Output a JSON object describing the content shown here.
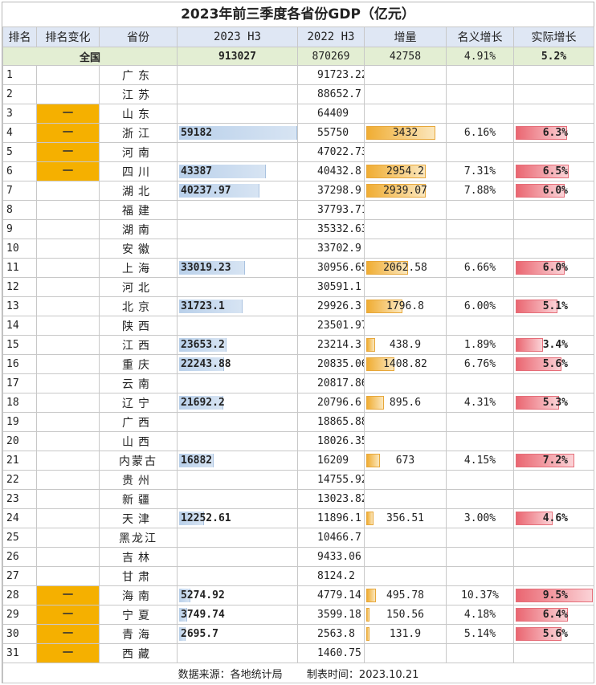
{
  "title": "2023年前三季度各省份GDP（亿元）",
  "headers": [
    "排名",
    "排名变化",
    "省份",
    "2023 H3",
    "2022 H3",
    "增量",
    "名义增长",
    "实际增长"
  ],
  "national": {
    "label": "全国",
    "h3_2023": "913027",
    "h3_2022": "870269",
    "increase": "42758",
    "nominal": "4.91%",
    "real": "5.2%"
  },
  "colors": {
    "rank_change": "#f5b000",
    "bar_2023": "#b9d0ea",
    "bar_increase": "#f0ad33",
    "bar_real": "#ea6671",
    "header_bg": "#dfe7f4",
    "national_bg": "#e3eed3"
  },
  "rows": [
    {
      "rank": "1",
      "change": "",
      "province": "广东",
      "h3_2023": "",
      "h3_2022": "91723.22",
      "increase": "",
      "nominal": "",
      "real": ""
    },
    {
      "rank": "2",
      "change": "",
      "province": "江苏",
      "h3_2023": "",
      "h3_2022": "88652.7",
      "increase": "",
      "nominal": "",
      "real": ""
    },
    {
      "rank": "3",
      "change": "一",
      "province": "山东",
      "h3_2023": "",
      "h3_2022": "64409",
      "increase": "",
      "nominal": "",
      "real": ""
    },
    {
      "rank": "4",
      "change": "一",
      "province": "浙江",
      "h3_2023": "59182",
      "h3_2022": "55750",
      "increase": "3432",
      "nominal": "6.16%",
      "real": "6.3%"
    },
    {
      "rank": "5",
      "change": "一",
      "province": "河南",
      "h3_2023": "",
      "h3_2022": "47022.73",
      "increase": "",
      "nominal": "",
      "real": ""
    },
    {
      "rank": "6",
      "change": "一",
      "province": "四川",
      "h3_2023": "43387",
      "h3_2022": "40432.8",
      "increase": "2954.2",
      "nominal": "7.31%",
      "real": "6.5%"
    },
    {
      "rank": "7",
      "change": "",
      "province": "湖北",
      "h3_2023": "40237.97",
      "h3_2022": "37298.9",
      "increase": "2939.07",
      "nominal": "7.88%",
      "real": "6.0%"
    },
    {
      "rank": "8",
      "change": "",
      "province": "福建",
      "h3_2023": "",
      "h3_2022": "37793.71",
      "increase": "",
      "nominal": "",
      "real": ""
    },
    {
      "rank": "9",
      "change": "",
      "province": "湖南",
      "h3_2023": "",
      "h3_2022": "35332.63",
      "increase": "",
      "nominal": "",
      "real": ""
    },
    {
      "rank": "10",
      "change": "",
      "province": "安徽",
      "h3_2023": "",
      "h3_2022": "33702.9",
      "increase": "",
      "nominal": "",
      "real": ""
    },
    {
      "rank": "11",
      "change": "",
      "province": "上海",
      "h3_2023": "33019.23",
      "h3_2022": "30956.65",
      "increase": "2062.58",
      "nominal": "6.66%",
      "real": "6.0%"
    },
    {
      "rank": "12",
      "change": "",
      "province": "河北",
      "h3_2023": "",
      "h3_2022": "30591.1",
      "increase": "",
      "nominal": "",
      "real": ""
    },
    {
      "rank": "13",
      "change": "",
      "province": "北京",
      "h3_2023": "31723.1",
      "h3_2022": "29926.3",
      "increase": "1796.8",
      "nominal": "6.00%",
      "real": "5.1%"
    },
    {
      "rank": "14",
      "change": "",
      "province": "陕西",
      "h3_2023": "",
      "h3_2022": "23501.97",
      "increase": "",
      "nominal": "",
      "real": ""
    },
    {
      "rank": "15",
      "change": "",
      "province": "江西",
      "h3_2023": "23653.2",
      "h3_2022": "23214.3",
      "increase": "438.9",
      "nominal": "1.89%",
      "real": "3.4%"
    },
    {
      "rank": "16",
      "change": "",
      "province": "重庆",
      "h3_2023": "22243.88",
      "h3_2022": "20835.06",
      "increase": "1408.82",
      "nominal": "6.76%",
      "real": "5.6%"
    },
    {
      "rank": "17",
      "change": "",
      "province": "云南",
      "h3_2023": "",
      "h3_2022": "20817.86",
      "increase": "",
      "nominal": "",
      "real": ""
    },
    {
      "rank": "18",
      "change": "",
      "province": "辽宁",
      "h3_2023": "21692.2",
      "h3_2022": "20796.6",
      "increase": "895.6",
      "nominal": "4.31%",
      "real": "5.3%"
    },
    {
      "rank": "19",
      "change": "",
      "province": "广西",
      "h3_2023": "",
      "h3_2022": "18865.88",
      "increase": "",
      "nominal": "",
      "real": ""
    },
    {
      "rank": "20",
      "change": "",
      "province": "山西",
      "h3_2023": "",
      "h3_2022": "18026.35",
      "increase": "",
      "nominal": "",
      "real": ""
    },
    {
      "rank": "21",
      "change": "",
      "province": "内蒙古",
      "h3_2023": "16882",
      "h3_2022": "16209",
      "increase": "673",
      "nominal": "4.15%",
      "real": "7.2%"
    },
    {
      "rank": "22",
      "change": "",
      "province": "贵州",
      "h3_2023": "",
      "h3_2022": "14755.92",
      "increase": "",
      "nominal": "",
      "real": ""
    },
    {
      "rank": "23",
      "change": "",
      "province": "新疆",
      "h3_2023": "",
      "h3_2022": "13023.82",
      "increase": "",
      "nominal": "",
      "real": ""
    },
    {
      "rank": "24",
      "change": "",
      "province": "天津",
      "h3_2023": "12252.61",
      "h3_2022": "11896.1",
      "increase": "356.51",
      "nominal": "3.00%",
      "real": "4.6%"
    },
    {
      "rank": "25",
      "change": "",
      "province": "黑龙江",
      "h3_2023": "",
      "h3_2022": "10466.7",
      "increase": "",
      "nominal": "",
      "real": ""
    },
    {
      "rank": "26",
      "change": "",
      "province": "吉林",
      "h3_2023": "",
      "h3_2022": "9433.06",
      "increase": "",
      "nominal": "",
      "real": ""
    },
    {
      "rank": "27",
      "change": "",
      "province": "甘肃",
      "h3_2023": "",
      "h3_2022": "8124.2",
      "increase": "",
      "nominal": "",
      "real": ""
    },
    {
      "rank": "28",
      "change": "一",
      "province": "海南",
      "h3_2023": "5274.92",
      "h3_2022": "4779.14",
      "increase": "495.78",
      "nominal": "10.37%",
      "real": "9.5%"
    },
    {
      "rank": "29",
      "change": "一",
      "province": "宁夏",
      "h3_2023": "3749.74",
      "h3_2022": "3599.18",
      "increase": "150.56",
      "nominal": "4.18%",
      "real": "6.4%"
    },
    {
      "rank": "30",
      "change": "一",
      "province": "青海",
      "h3_2023": "2695.7",
      "h3_2022": "2563.8",
      "increase": "131.9",
      "nominal": "5.14%",
      "real": "5.6%"
    },
    {
      "rank": "31",
      "change": "一",
      "province": "西藏",
      "h3_2023": "",
      "h3_2022": "1460.75",
      "increase": "",
      "nominal": "",
      "real": ""
    }
  ],
  "footer": {
    "source_label": "数据来源：各地统计局",
    "date_label": "制表时间：2023.10.21"
  }
}
